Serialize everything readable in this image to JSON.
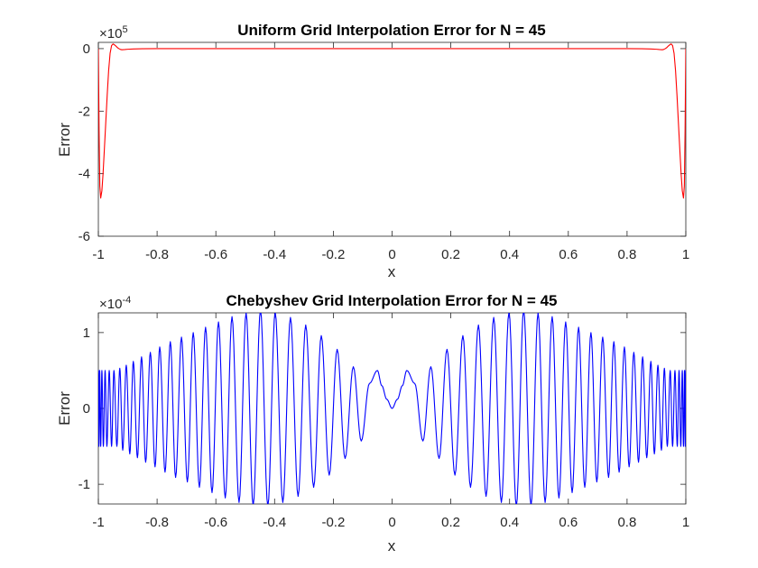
{
  "chart_data": [
    {
      "type": "line",
      "title": "Uniform Grid Interpolation Error for N = 45",
      "xlabel": "x",
      "ylabel": "Error",
      "xlim": [
        -1,
        1
      ],
      "ylim": [
        -600000,
        20000
      ],
      "x_ticks": [
        -1,
        -0.8,
        -0.6,
        -0.4,
        -0.2,
        0,
        0.2,
        0.4,
        0.6,
        0.8,
        1
      ],
      "x_tick_labels": [
        "-1",
        "-0.8",
        "-0.6",
        "-0.4",
        "-0.2",
        "0",
        "0.2",
        "0.4",
        "0.6",
        "0.8",
        "1"
      ],
      "y_ticks": [
        -600000,
        -400000,
        -200000,
        0
      ],
      "y_tick_labels": [
        "-6",
        "-4",
        "-2",
        "0"
      ],
      "y_exponent_base": "×10",
      "y_exponent_power": "5",
      "grid": false,
      "series": [
        {
          "color": "#ff0000",
          "x": [
            -1,
            -0.9975,
            -0.995,
            -0.992,
            -0.988,
            -0.984,
            -0.98,
            -0.975,
            -0.97,
            -0.965,
            -0.96,
            -0.955,
            -0.95,
            -0.945,
            -0.94,
            -0.935,
            -0.93,
            -0.925,
            -0.92,
            -0.91,
            -0.9,
            -0.88,
            -0.85,
            -0.8,
            -0.6,
            -0.4,
            -0.2,
            0,
            0.2,
            0.4,
            0.6,
            0.8,
            0.85,
            0.88,
            0.9,
            0.91,
            0.92,
            0.925,
            0.93,
            0.935,
            0.94,
            0.945,
            0.95,
            0.955,
            0.96,
            0.965,
            0.97,
            0.975,
            0.98,
            0.984,
            0.988,
            0.992,
            0.995,
            0.9975,
            1
          ],
          "y": [
            0,
            -260000,
            -440000,
            -478000,
            -455000,
            -400000,
            -330000,
            -240000,
            -150000,
            -70000,
            -15000,
            10000,
            15000,
            12000,
            8000,
            3000,
            0,
            -2500,
            -3500,
            -3000,
            -2000,
            -1000,
            -500,
            0,
            0,
            0,
            0,
            0,
            0,
            0,
            0,
            0,
            -500,
            -1000,
            -2000,
            -3000,
            -3500,
            -2500,
            0,
            3000,
            8000,
            12000,
            15000,
            10000,
            -15000,
            -70000,
            -150000,
            -240000,
            -330000,
            -400000,
            -455000,
            -478000,
            -440000,
            -260000,
            0
          ]
        }
      ]
    },
    {
      "type": "line",
      "title": "Chebyshev Grid Interpolation Error for N = 45",
      "xlabel": "x",
      "ylabel": "Error",
      "xlim": [
        -1,
        1
      ],
      "ylim": [
        -0.000126,
        0.000126
      ],
      "x_ticks": [
        -1,
        -0.8,
        -0.6,
        -0.4,
        -0.2,
        0,
        0.2,
        0.4,
        0.6,
        0.8,
        1
      ],
      "x_tick_labels": [
        "-1",
        "-0.8",
        "-0.6",
        "-0.4",
        "-0.2",
        "0",
        "0.2",
        "0.4",
        "0.6",
        "0.8",
        "1"
      ],
      "y_ticks": [
        -0.0001,
        0,
        0.0001
      ],
      "y_tick_labels": [
        "-1",
        "0",
        "1"
      ],
      "y_exponent_base": "×10",
      "y_exponent_power": "-4",
      "grid": false,
      "series": [
        {
          "color": "#0000ff",
          "x": [
            -1,
            -0.9995,
            -0.998,
            -0.9955,
            -0.992,
            -0.988,
            -0.983,
            -0.977,
            -0.971,
            -0.963,
            -0.955,
            -0.947,
            -0.937,
            -0.927,
            -0.917,
            -0.905,
            -0.893,
            -0.881,
            -0.867,
            -0.853,
            -0.839,
            -0.823,
            -0.807,
            -0.791,
            -0.773,
            -0.755,
            -0.737,
            -0.717,
            -0.697,
            -0.677,
            -0.656,
            -0.635,
            -0.613,
            -0.591,
            -0.568,
            -0.545,
            -0.521,
            -0.497,
            -0.473,
            -0.448,
            -0.423,
            -0.398,
            -0.372,
            -0.346,
            -0.32,
            -0.294,
            -0.267,
            -0.241,
            -0.214,
            -0.187,
            -0.16,
            -0.132,
            -0.105,
            -0.077,
            -0.05,
            -0.035,
            -0.018,
            0,
            0.018,
            0.035,
            0.05,
            0.077,
            0.105,
            0.132,
            0.16,
            0.187,
            0.214,
            0.241,
            0.267,
            0.294,
            0.32,
            0.346,
            0.372,
            0.398,
            0.423,
            0.448,
            0.473,
            0.497,
            0.521,
            0.545,
            0.568,
            0.591,
            0.613,
            0.635,
            0.656,
            0.677,
            0.697,
            0.717,
            0.737,
            0.755,
            0.773,
            0.791,
            0.807,
            0.823,
            0.839,
            0.853,
            0.867,
            0.881,
            0.893,
            0.905,
            0.917,
            0.927,
            0.937,
            0.947,
            0.955,
            0.963,
            0.971,
            0.977,
            0.983,
            0.988,
            0.992,
            0.9955,
            0.998,
            0.9995,
            1
          ],
          "y": [
            0,
            5e-05,
            -5e-05,
            5e-05,
            -5e-05,
            5e-05,
            -5e-05,
            5e-05,
            -5e-05,
            5e-05,
            -5e-05,
            5e-05,
            -5e-05,
            5.3e-05,
            -5.5e-05,
            5.7e-05,
            -6e-05,
            6.2e-05,
            -6.5e-05,
            6.8e-05,
            -7.1e-05,
            7.4e-05,
            -7.7e-05,
            8.1e-05,
            -8.4e-05,
            8.8e-05,
            -9.1e-05,
            9.4e-05,
            -9.7e-05,
            0.0001,
            -0.000104,
            0.000107,
            -0.000111,
            0.000114,
            -0.000118,
            0.000121,
            -0.000124,
            0.000126,
            -0.000128,
            0.00013,
            -0.000129,
            0.000127,
            -0.000124,
            0.00012,
            -0.000116,
            0.00011,
            -0.000104,
            9.6e-05,
            -8.8e-05,
            7.8e-05,
            -6.6e-05,
            5.5e-05,
            -4.3e-05,
            3.3e-05,
            5e-05,
            3e-05,
            1.2e-05,
            0,
            1.2e-05,
            3e-05,
            5e-05,
            3.3e-05,
            -4.3e-05,
            5.5e-05,
            -6.6e-05,
            7.8e-05,
            -8.8e-05,
            9.6e-05,
            -0.000104,
            0.00011,
            -0.000116,
            0.00012,
            -0.000124,
            0.000127,
            -0.000129,
            0.00013,
            -0.000128,
            0.000126,
            -0.000124,
            0.000121,
            -0.000118,
            0.000114,
            -0.000111,
            0.000107,
            -0.000104,
            0.0001,
            -9.7e-05,
            9.4e-05,
            -9.1e-05,
            8.8e-05,
            -8.4e-05,
            8.1e-05,
            -7.7e-05,
            7.4e-05,
            -7.1e-05,
            6.8e-05,
            -6.5e-05,
            6.2e-05,
            -6e-05,
            5.7e-05,
            -5.5e-05,
            5.3e-05,
            -5e-05,
            5e-05,
            -5e-05,
            5e-05,
            -5e-05,
            5e-05,
            -5e-05,
            5e-05,
            -5e-05,
            5e-05,
            -5e-05,
            5e-05,
            0
          ]
        }
      ]
    }
  ]
}
